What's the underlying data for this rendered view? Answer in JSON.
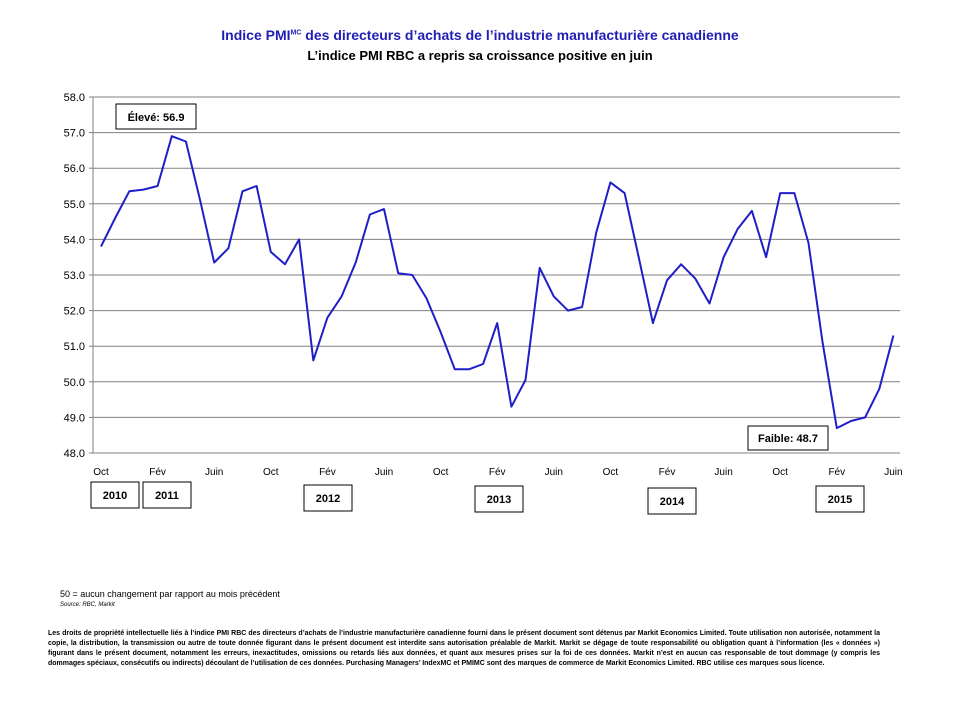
{
  "header": {
    "title_main": "Indice PMI",
    "title_sup": "MC",
    "title_rest": " des directeurs d’achats de l’industrie manufacturière canadienne",
    "subtitle": "L’indice PMI RBC a repris sa croissance positive en juin"
  },
  "chart_data": {
    "type": "line",
    "ylim": [
      48.0,
      58.0
    ],
    "y_ticks": [
      "58.0",
      "57.0",
      "56.0",
      "55.0",
      "54.0",
      "53.0",
      "52.0",
      "51.0",
      "50.0",
      "49.0",
      "48.0"
    ],
    "x_tick_labels": [
      "Oct",
      "Fév",
      "Juin",
      "Oct",
      "Fév",
      "Juin",
      "Oct",
      "Fév",
      "Juin",
      "Oct",
      "Fév",
      "Juin",
      "Oct",
      "Fév",
      "Juin"
    ],
    "year_labels": [
      "2010",
      "2011",
      "2012",
      "2013",
      "2014",
      "2015"
    ],
    "grid": true,
    "line_color": "#1f1fc8",
    "series": [
      {
        "values": [
          53.8,
          54.6,
          55.35,
          55.4,
          55.5,
          56.9,
          56.75,
          55.1,
          53.35,
          53.75,
          55.35,
          55.5,
          53.65,
          53.3,
          54.0,
          50.6,
          51.8,
          52.4,
          53.35,
          54.7,
          54.85,
          53.05,
          53.0,
          52.35,
          51.4,
          50.35,
          50.35,
          50.5,
          51.65,
          49.3,
          50.05,
          53.2,
          52.4,
          52.0,
          52.1,
          54.2,
          55.6,
          55.3,
          53.5,
          51.65,
          52.85,
          53.3,
          52.9,
          52.2,
          53.5,
          54.3,
          54.8,
          53.5,
          55.3,
          55.3,
          53.9,
          51.1,
          48.7,
          48.9,
          49.0,
          49.8,
          51.3
        ]
      }
    ],
    "annotations": {
      "high": "Élevé: 56.9",
      "low": "Faible: 48.7"
    }
  },
  "footer": {
    "note": "50 = aucun changement par rapport au mois précédent",
    "source": "Source: RBC, Markit",
    "copyright": "Les droits de propriété intellectuelle liés à l’indice PMI RBC des directeurs d’achats de l’industrie manufacturière canadienne fourni dans le présent document sont détenus par Markit Economics Limited. Toute utilisation non autorisée, notamment la copie, la distribution, la transmission ou autre de toute donnée figurant dans le présent document est interdite sans autorisation préalable de Markit. Markit se dégage de toute responsabilité ou obligation quant à l’information (les « données ») figurant dans le présent document, notamment les erreurs, inexactitudes, omissions ou retards liés aux données, et quant aux mesures prises sur la foi de ces données. Markit n’est en aucun cas responsable de tout dommage (y compris les dommages spéciaux, consécutifs ou indirects) découlant de l’utilisation de ces données. Purchasing Managers’ IndexMC et PMIMC sont des marques de commerce de Markit Economics Limited. RBC utilise ces marques sous licence."
  }
}
